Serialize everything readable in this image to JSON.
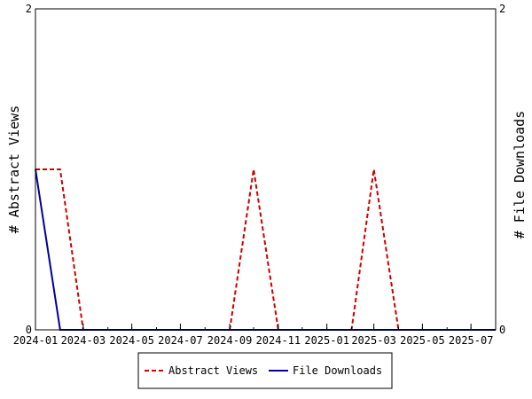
{
  "chart_data": {
    "type": "line",
    "x_type": "date",
    "x_tick_labels": [
      "2024-01",
      "2024-03",
      "2024-05",
      "2024-07",
      "2024-09",
      "2024-11",
      "2025-01",
      "2025-03",
      "2025-05",
      "2025-07"
    ],
    "x_ticks": [
      "2024-01-01",
      "2024-03-01",
      "2024-05-01",
      "2024-07-01",
      "2024-09-01",
      "2024-11-01",
      "2025-01-01",
      "2025-03-01",
      "2025-05-01",
      "2025-07-01"
    ],
    "xlim": [
      "2024-01-01",
      "2025-08-01"
    ],
    "ylabel_left": "# Abstract Views",
    "ylabel_right": "# File Downloads",
    "ylim_left": [
      0,
      2
    ],
    "ylim_right": [
      0,
      2
    ],
    "y_tick_labels_left": [
      "0",
      "2"
    ],
    "y_tick_labels_right": [
      "0",
      "2"
    ],
    "grid": false,
    "legend_position": "bottom",
    "series": [
      {
        "name": "Abstract Views",
        "color": "#cc0000",
        "dash": "dashed",
        "axis": "left",
        "points": [
          [
            "2024-01-01",
            1
          ],
          [
            "2024-02-01",
            1
          ],
          [
            "2024-03-01",
            0
          ],
          [
            "2024-08-01",
            0
          ],
          [
            "2024-09-01",
            0
          ],
          [
            "2024-10-01",
            1
          ],
          [
            "2024-11-01",
            0
          ],
          [
            "2025-01-01",
            0
          ],
          [
            "2025-02-01",
            0
          ],
          [
            "2025-03-01",
            1
          ],
          [
            "2025-04-01",
            0
          ],
          [
            "2025-08-01",
            0
          ]
        ]
      },
      {
        "name": "File Downloads",
        "color": "#000099",
        "dash": "solid",
        "axis": "right",
        "points": [
          [
            "2024-01-01",
            1
          ],
          [
            "2024-02-01",
            0
          ],
          [
            "2025-08-01",
            0
          ]
        ]
      }
    ]
  }
}
